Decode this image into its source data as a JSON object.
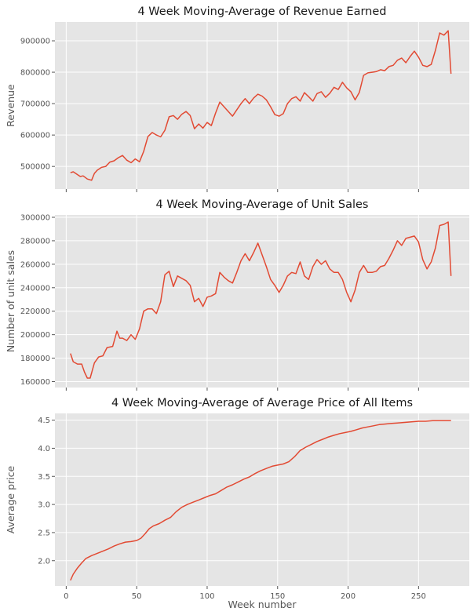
{
  "figure": {
    "shared_x_label": "Week number",
    "line_color": "#e24a33"
  },
  "chart_data": [
    {
      "type": "line",
      "title": "4 Week Moving-Average of Revenue Earned",
      "xlabel": "",
      "ylabel": "Revenue",
      "xlim": [
        -8,
        286
      ],
      "ylim": [
        428000,
        960000
      ],
      "xticks": [
        0,
        50,
        100,
        150,
        200,
        250
      ],
      "yticks": [
        500000,
        600000,
        700000,
        800000,
        900000
      ],
      "ytick_labels": [
        "500000",
        "600000",
        "700000",
        "800000",
        "900000"
      ],
      "show_xtick_labels": false,
      "grid": true,
      "series": [
        {
          "x": [
            3,
            5,
            7,
            10,
            12,
            15,
            18,
            20,
            22,
            25,
            28,
            31,
            34,
            37,
            40,
            43,
            46,
            49,
            52,
            55,
            58,
            61,
            64,
            67,
            70,
            73,
            76,
            79,
            82,
            85,
            88,
            91,
            94,
            97,
            100,
            103,
            106,
            109,
            112,
            115,
            118,
            121,
            124,
            127,
            130,
            133,
            136,
            139,
            142,
            145,
            148,
            151,
            154,
            157,
            160,
            163,
            166,
            169,
            172,
            175,
            178,
            181,
            184,
            187,
            190,
            193,
            196,
            199,
            202,
            205,
            208,
            211,
            214,
            217,
            220,
            223,
            226,
            229,
            232,
            235,
            238,
            241,
            244,
            247,
            250,
            253,
            256,
            259,
            262,
            265,
            268,
            271,
            273
          ],
          "values": [
            480000,
            483000,
            477000,
            468000,
            470000,
            460000,
            456000,
            478000,
            488000,
            497000,
            500000,
            514000,
            518000,
            528000,
            535000,
            520000,
            512000,
            524000,
            515000,
            548000,
            595000,
            608000,
            600000,
            594000,
            615000,
            658000,
            662000,
            650000,
            666000,
            675000,
            662000,
            620000,
            635000,
            622000,
            640000,
            630000,
            670000,
            705000,
            690000,
            675000,
            660000,
            680000,
            700000,
            716000,
            700000,
            718000,
            730000,
            724000,
            712000,
            690000,
            665000,
            660000,
            668000,
            700000,
            716000,
            722000,
            708000,
            735000,
            722000,
            708000,
            732000,
            738000,
            720000,
            733000,
            752000,
            745000,
            768000,
            750000,
            738000,
            712000,
            736000,
            790000,
            798000,
            800000,
            802000,
            808000,
            805000,
            818000,
            822000,
            838000,
            845000,
            830000,
            850000,
            867000,
            848000,
            822000,
            818000,
            825000,
            870000,
            925000,
            918000,
            932000,
            795000
          ]
        }
      ]
    },
    {
      "type": "line",
      "title": "4 Week Moving-Average of Unit Sales",
      "xlabel": "",
      "ylabel": "Number of unit sales",
      "xlim": [
        -8,
        286
      ],
      "ylim": [
        155000,
        302000
      ],
      "xticks": [
        0,
        50,
        100,
        150,
        200,
        250
      ],
      "yticks": [
        160000,
        180000,
        200000,
        220000,
        240000,
        260000,
        280000,
        300000
      ],
      "ytick_labels": [
        "160000",
        "180000",
        "200000",
        "220000",
        "240000",
        "260000",
        "280000",
        "300000"
      ],
      "show_xtick_labels": false,
      "grid": true,
      "series": [
        {
          "x": [
            3,
            5,
            8,
            11,
            13,
            15,
            17,
            20,
            23,
            26,
            29,
            33,
            36,
            38,
            40,
            43,
            46,
            49,
            52,
            55,
            58,
            61,
            64,
            67,
            70,
            73,
            76,
            79,
            82,
            85,
            88,
            91,
            94,
            97,
            100,
            103,
            106,
            109,
            112,
            115,
            118,
            121,
            124,
            127,
            130,
            133,
            136,
            139,
            142,
            145,
            148,
            151,
            154,
            157,
            160,
            163,
            166,
            169,
            172,
            175,
            178,
            181,
            184,
            187,
            190,
            193,
            196,
            199,
            202,
            205,
            208,
            211,
            214,
            217,
            220,
            223,
            226,
            229,
            232,
            235,
            238,
            241,
            244,
            247,
            250,
            253,
            256,
            259,
            262,
            265,
            268,
            271,
            273
          ],
          "values": [
            184000,
            177000,
            175000,
            175000,
            168000,
            163000,
            163000,
            176000,
            181000,
            182000,
            189000,
            190000,
            203000,
            197000,
            197000,
            195000,
            200000,
            196000,
            205000,
            220000,
            222000,
            222000,
            218000,
            228000,
            251000,
            254000,
            241000,
            250000,
            248000,
            246000,
            242000,
            228000,
            231000,
            224000,
            232000,
            233000,
            235000,
            253000,
            249000,
            246000,
            244000,
            253000,
            263000,
            269000,
            263000,
            270000,
            278000,
            268000,
            258000,
            247000,
            242000,
            236000,
            242000,
            250000,
            253000,
            252000,
            262000,
            250000,
            247000,
            258000,
            264000,
            260000,
            263000,
            256000,
            253000,
            253000,
            247000,
            236000,
            228000,
            238000,
            253000,
            259000,
            253000,
            253000,
            254000,
            258000,
            259000,
            265000,
            272000,
            280000,
            276000,
            282000,
            283000,
            284000,
            279000,
            264000,
            256000,
            262000,
            274000,
            293000,
            294000,
            296000,
            250000
          ]
        }
      ]
    },
    {
      "type": "line",
      "title": "4 Week Moving-Average of Average Price of All Items",
      "xlabel": "Week number",
      "ylabel": "Average price",
      "xlim": [
        -8,
        286
      ],
      "ylim": [
        1.55,
        4.62
      ],
      "xticks": [
        0,
        50,
        100,
        150,
        200,
        250
      ],
      "xtick_labels": [
        "0",
        "50",
        "100",
        "150",
        "200",
        "250"
      ],
      "yticks": [
        2.0,
        2.5,
        3.0,
        3.5,
        4.0,
        4.5
      ],
      "ytick_labels": [
        "2.0",
        "2.5",
        "3.0",
        "3.5",
        "4.0",
        "4.5"
      ],
      "show_xtick_labels": true,
      "grid": true,
      "series": [
        {
          "x": [
            3,
            5,
            8,
            11,
            14,
            18,
            22,
            26,
            30,
            34,
            38,
            42,
            46,
            50,
            53,
            56,
            59,
            62,
            66,
            70,
            74,
            78,
            82,
            86,
            90,
            94,
            98,
            102,
            106,
            110,
            114,
            118,
            122,
            126,
            130,
            134,
            138,
            142,
            146,
            150,
            154,
            158,
            162,
            166,
            170,
            174,
            178,
            182,
            186,
            190,
            194,
            198,
            202,
            206,
            210,
            214,
            218,
            222,
            226,
            230,
            235,
            240,
            245,
            250,
            255,
            260,
            265,
            270,
            273
          ],
          "values": [
            1.65,
            1.76,
            1.87,
            1.96,
            2.04,
            2.09,
            2.13,
            2.17,
            2.21,
            2.26,
            2.3,
            2.33,
            2.34,
            2.36,
            2.4,
            2.48,
            2.57,
            2.62,
            2.66,
            2.72,
            2.77,
            2.87,
            2.95,
            3.0,
            3.04,
            3.08,
            3.12,
            3.16,
            3.19,
            3.25,
            3.31,
            3.35,
            3.4,
            3.45,
            3.49,
            3.55,
            3.6,
            3.64,
            3.68,
            3.7,
            3.72,
            3.76,
            3.85,
            3.96,
            4.02,
            4.07,
            4.12,
            4.16,
            4.2,
            4.23,
            4.26,
            4.28,
            4.3,
            4.33,
            4.36,
            4.38,
            4.4,
            4.42,
            4.43,
            4.44,
            4.45,
            4.46,
            4.47,
            4.48,
            4.48,
            4.49,
            4.49,
            4.49,
            4.49
          ]
        }
      ]
    }
  ]
}
